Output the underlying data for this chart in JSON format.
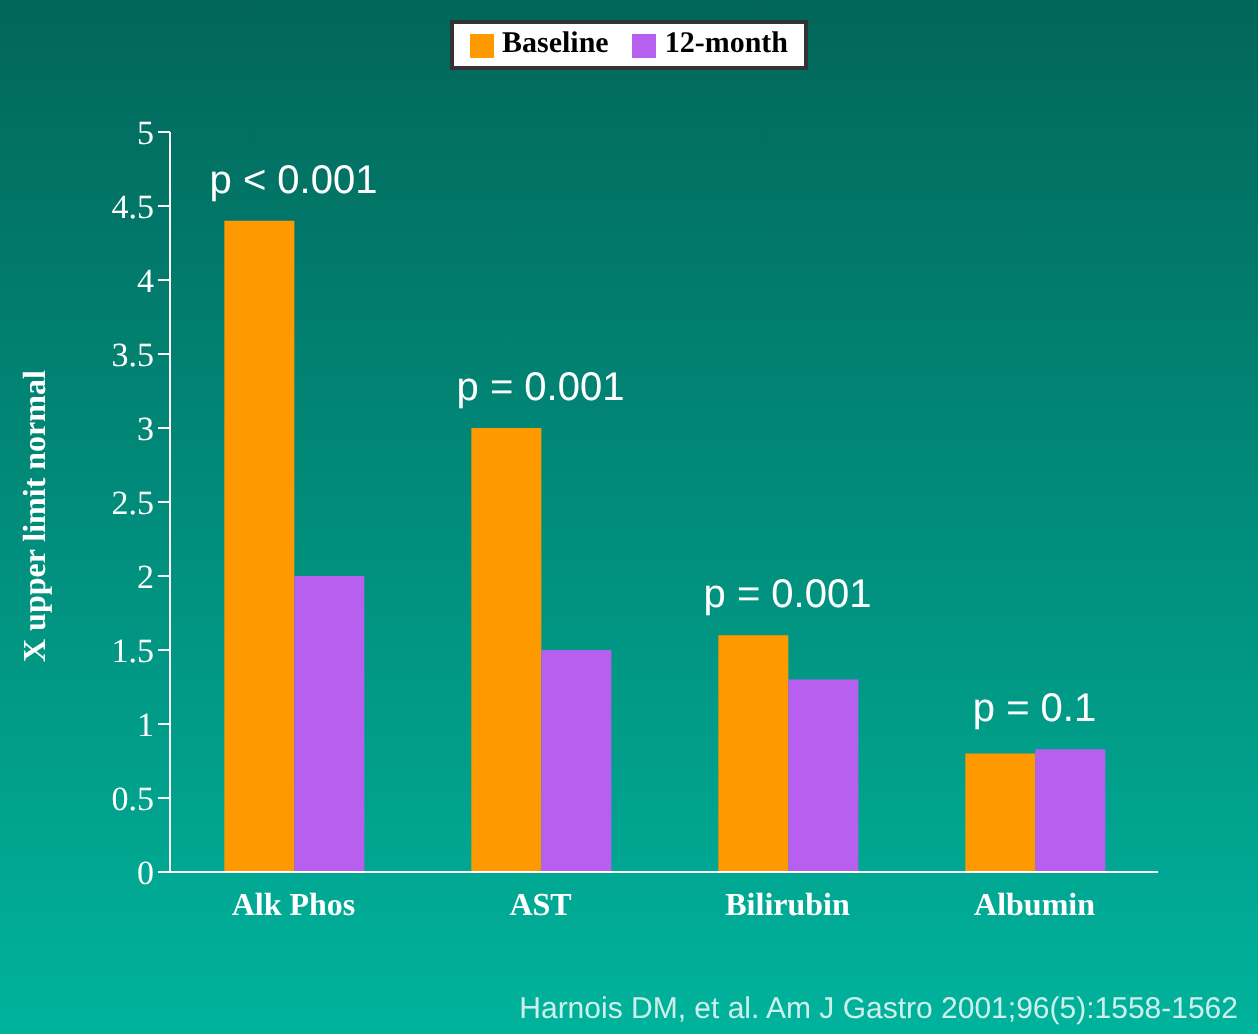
{
  "chart_data": {
    "type": "bar",
    "ylabel": "X upper limit normal",
    "categories": [
      "Alk Phos",
      "AST",
      "Bilirubin",
      "Albumin"
    ],
    "series": [
      {
        "name": "Baseline",
        "color": "#ff9900",
        "values": [
          4.4,
          3.0,
          1.6,
          0.8
        ]
      },
      {
        "name": "12-month",
        "color": "#b760f0",
        "values": [
          2.0,
          1.5,
          1.3,
          0.83
        ]
      }
    ],
    "ylim": [
      0,
      5
    ],
    "yticks": [
      0,
      0.5,
      1,
      1.5,
      2,
      2.5,
      3,
      3.5,
      4,
      4.5,
      5
    ],
    "grid": false,
    "legend": "top",
    "annotations": [
      "p < 0.001",
      "p = 0.001",
      "p = 0.001",
      "p = 0.1",
      "Harnois DM, et al.  Am J Gastro 2001;96(5):1558-1562"
    ]
  }
}
